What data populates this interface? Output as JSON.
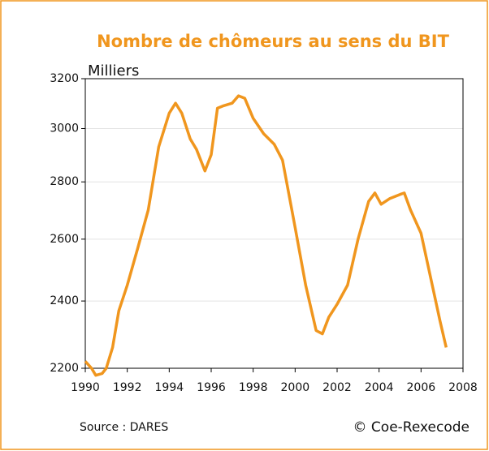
{
  "chart_data": {
    "type": "line",
    "title": "Nombre de chômeurs au sens du BIT",
    "y_label": "Milliers",
    "source": "Source : DARES",
    "credit": "© Coe-Rexecode",
    "log_scale": true,
    "grid": true,
    "xlim": [
      1990,
      2008
    ],
    "xticks": [
      1990,
      1992,
      1994,
      1996,
      1998,
      2000,
      2002,
      2004,
      2006,
      2008
    ],
    "ylim": [
      2200,
      3200
    ],
    "yticks": [
      2200,
      2400,
      2600,
      2800,
      3000,
      3200
    ],
    "series": [
      {
        "name": "Nombre de chômeurs",
        "color": "#f0961e",
        "x": [
          1990.0,
          1990.3,
          1990.5,
          1990.8,
          1991.0,
          1991.3,
          1991.6,
          1992.0,
          1992.5,
          1993.0,
          1993.5,
          1994.0,
          1994.3,
          1994.6,
          1995.0,
          1995.3,
          1995.7,
          1996.0,
          1996.3,
          1996.6,
          1997.0,
          1997.3,
          1997.6,
          1998.0,
          1998.5,
          1999.0,
          1999.4,
          2000.0,
          2000.5,
          2001.0,
          2001.3,
          2001.6,
          2002.0,
          2002.5,
          2003.0,
          2003.5,
          2003.8,
          2004.1,
          2004.5,
          2005.0,
          2005.2,
          2005.5,
          2006.0,
          2006.5,
          2006.9,
          2007.2
        ],
        "values": [
          2220,
          2200,
          2180,
          2185,
          2200,
          2260,
          2370,
          2450,
          2570,
          2700,
          2930,
          3060,
          3100,
          3060,
          2960,
          2920,
          2840,
          2900,
          3080,
          3090,
          3100,
          3130,
          3120,
          3040,
          2980,
          2940,
          2880,
          2640,
          2450,
          2310,
          2300,
          2350,
          2390,
          2450,
          2600,
          2730,
          2760,
          2720,
          2740,
          2755,
          2760,
          2700,
          2620,
          2460,
          2340,
          2260
        ]
      }
    ]
  }
}
